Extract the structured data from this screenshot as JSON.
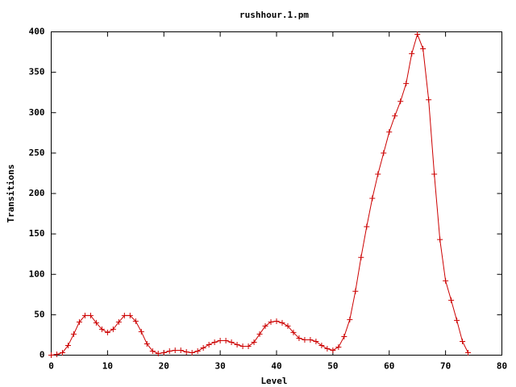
{
  "chart_data": {
    "type": "line",
    "title": "rushhour.1.pm",
    "x_label": "Level",
    "y_label": "Transitions",
    "x": [
      0,
      1,
      2,
      3,
      4,
      5,
      6,
      7,
      8,
      9,
      10,
      11,
      12,
      13,
      14,
      15,
      16,
      17,
      18,
      19,
      20,
      21,
      22,
      23,
      24,
      25,
      26,
      27,
      28,
      29,
      30,
      31,
      32,
      33,
      34,
      35,
      36,
      37,
      38,
      39,
      40,
      41,
      42,
      43,
      44,
      45,
      46,
      47,
      48,
      49,
      50,
      51,
      52,
      53,
      54,
      55,
      56,
      57,
      58,
      59,
      60,
      61,
      62,
      63,
      64,
      65,
      66,
      67,
      68,
      69,
      70,
      71,
      72,
      73,
      74
    ],
    "values": [
      0,
      1,
      3,
      12,
      26,
      41,
      49,
      49,
      40,
      32,
      28,
      32,
      41,
      49,
      49,
      42,
      29,
      14,
      5,
      2,
      3,
      5,
      6,
      6,
      4,
      3,
      5,
      9,
      13,
      16,
      18,
      18,
      16,
      13,
      11,
      11,
      16,
      26,
      36,
      41,
      42,
      40,
      36,
      28,
      21,
      19,
      19,
      17,
      12,
      8,
      6,
      10,
      23,
      44,
      79,
      121,
      159,
      194,
      224,
      250,
      276,
      296,
      314,
      336,
      373,
      397,
      379,
      316,
      224,
      143,
      92,
      68,
      43,
      17,
      3
    ],
    "color": "#cc0000",
    "marker": "+",
    "xlim": [
      0,
      80
    ],
    "xticks": [
      0,
      10,
      20,
      30,
      40,
      50,
      60,
      70,
      80
    ],
    "ylim": [
      0,
      400
    ],
    "yticks": [
      0,
      50,
      100,
      150,
      200,
      250,
      300,
      350,
      400
    ]
  }
}
